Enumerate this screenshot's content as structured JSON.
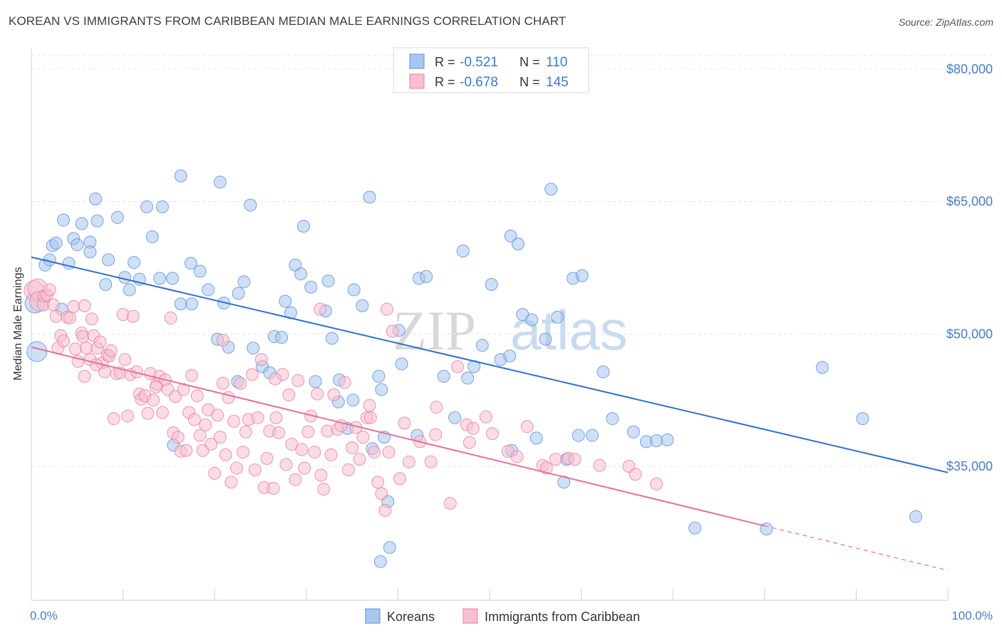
{
  "header": {
    "title": "KOREAN VS IMMIGRANTS FROM CARIBBEAN MEDIAN MALE EARNINGS CORRELATION CHART",
    "source": "Source: ZipAtlas.com"
  },
  "watermark": {
    "zip": "ZIP",
    "atlas": "atlas"
  },
  "stats": [
    {
      "r_label": "R =",
      "r_value": "-0.521",
      "n_label": "N =",
      "n_value": "110",
      "color": "#a8c7ef",
      "stroke": "#5b8fd6"
    },
    {
      "r_label": "R =",
      "r_value": "-0.678",
      "n_label": "N =",
      "n_value": "145",
      "color": "#f8bfd0",
      "stroke": "#e47fa0"
    }
  ],
  "legend": [
    {
      "label": "Koreans",
      "color": "#a8c7ef",
      "stroke": "#5b8fd6"
    },
    {
      "label": "Immigrants from Caribbean",
      "color": "#f8bfd0",
      "stroke": "#e47fa0"
    }
  ],
  "chart_data": {
    "type": "scatter",
    "ylabel": "Median Male Earnings",
    "xlabel": "",
    "xlim": [
      0,
      100
    ],
    "ylim": [
      20000,
      83000
    ],
    "x_tick_labels": [
      "0.0%",
      "100.0%"
    ],
    "y_ticks": [
      {
        "value": 80000,
        "label": "$80,000"
      },
      {
        "value": 65000,
        "label": "$65,000"
      },
      {
        "value": 50000,
        "label": "$50,000"
      },
      {
        "value": 35000,
        "label": "$35,000"
      }
    ],
    "grid": "horizontal-dashed",
    "series": [
      {
        "name": "Koreans",
        "color": "#a8c7ef",
        "stroke": "#5b8fd6",
        "trend_color": "#2f6fcf",
        "trend": {
          "x0": 0,
          "y0": 58700,
          "x1": 100,
          "y1": 34300,
          "solid_until": 100
        },
        "points": [
          [
            0.6,
            48000
          ],
          [
            1.5,
            57800
          ],
          [
            0.4,
            53500
          ],
          [
            2,
            58400
          ],
          [
            2.3,
            60000
          ],
          [
            3.5,
            62900
          ],
          [
            4.1,
            58000
          ],
          [
            4.6,
            60800
          ],
          [
            5,
            60100
          ],
          [
            5.5,
            62500
          ],
          [
            6.4,
            60400
          ],
          [
            6.4,
            59300
          ],
          [
            7,
            65300
          ],
          [
            7.2,
            62800
          ],
          [
            8.1,
            55600
          ],
          [
            8.4,
            58400
          ],
          [
            9.4,
            63200
          ],
          [
            10.2,
            56400
          ],
          [
            10.7,
            55000
          ],
          [
            11.2,
            58100
          ],
          [
            11.8,
            56200
          ],
          [
            12.6,
            64400
          ],
          [
            13.2,
            61000
          ],
          [
            14,
            56300
          ],
          [
            14.3,
            64400
          ],
          [
            15.4,
            56300
          ],
          [
            16.3,
            53400
          ],
          [
            16.3,
            67900
          ],
          [
            17.4,
            58000
          ],
          [
            17.5,
            53400
          ],
          [
            18.4,
            57100
          ],
          [
            19.3,
            55000
          ],
          [
            20.3,
            49400
          ],
          [
            20.6,
            67200
          ],
          [
            21,
            53500
          ],
          [
            21.5,
            48500
          ],
          [
            22.5,
            44600
          ],
          [
            22.6,
            54600
          ],
          [
            23.2,
            55900
          ],
          [
            23.9,
            64600
          ],
          [
            24.2,
            48400
          ],
          [
            25.2,
            46300
          ],
          [
            26,
            45600
          ],
          [
            26.5,
            49700
          ],
          [
            27.3,
            49600
          ],
          [
            27.7,
            53700
          ],
          [
            28.3,
            52400
          ],
          [
            28.8,
            57800
          ],
          [
            29.4,
            56800
          ],
          [
            29.7,
            62200
          ],
          [
            30.5,
            55300
          ],
          [
            31,
            44600
          ],
          [
            32.1,
            52600
          ],
          [
            32.4,
            56000
          ],
          [
            32.8,
            49500
          ],
          [
            33.5,
            42300
          ],
          [
            33.6,
            44800
          ],
          [
            34.5,
            39300
          ],
          [
            35.1,
            42500
          ],
          [
            35.2,
            55000
          ],
          [
            36.1,
            53200
          ],
          [
            36.9,
            65500
          ],
          [
            37.2,
            37000
          ],
          [
            37.9,
            45200
          ],
          [
            38.2,
            43700
          ],
          [
            38.5,
            38300
          ],
          [
            38.9,
            31000
          ],
          [
            39.1,
            25800
          ],
          [
            40.4,
            46600
          ],
          [
            42.1,
            38500
          ],
          [
            42.3,
            56300
          ],
          [
            43.1,
            56500
          ],
          [
            45,
            45200
          ],
          [
            46.2,
            40500
          ],
          [
            47.1,
            59400
          ],
          [
            47.6,
            45000
          ],
          [
            48.3,
            46300
          ],
          [
            49.2,
            48700
          ],
          [
            50.2,
            55600
          ],
          [
            51.2,
            47100
          ],
          [
            52.2,
            47500
          ],
          [
            52.3,
            61100
          ],
          [
            53.1,
            60200
          ],
          [
            53.6,
            52200
          ],
          [
            54.6,
            51600
          ],
          [
            55.1,
            38200
          ],
          [
            56.1,
            49400
          ],
          [
            56.7,
            66400
          ],
          [
            57.4,
            51900
          ],
          [
            58.1,
            33200
          ],
          [
            58.4,
            35800
          ],
          [
            59.1,
            56300
          ],
          [
            59.7,
            38500
          ],
          [
            60.1,
            56600
          ],
          [
            61.2,
            38500
          ],
          [
            62.4,
            45700
          ],
          [
            63.4,
            40400
          ],
          [
            65.7,
            38900
          ],
          [
            67.1,
            37800
          ],
          [
            68.2,
            37900
          ],
          [
            69.4,
            38000
          ],
          [
            72.4,
            28000
          ],
          [
            80.2,
            27900
          ],
          [
            86.3,
            46200
          ],
          [
            90.7,
            40400
          ],
          [
            96.5,
            29300
          ],
          [
            15.5,
            37400
          ],
          [
            38.1,
            24200
          ],
          [
            2.7,
            60300
          ],
          [
            52.4,
            36800
          ],
          [
            40.1,
            50400
          ],
          [
            3.3,
            52800
          ]
        ]
      },
      {
        "name": "Immigrants from Caribbean",
        "color": "#f8bfd0",
        "stroke": "#e47fa0",
        "trend_color": "#e8709a",
        "trend": {
          "x0": 0,
          "y0": 48500,
          "x1": 100,
          "y1": 23200,
          "solid_until": 80
        },
        "points": [
          [
            0.3,
            54900
          ],
          [
            0.7,
            55100
          ],
          [
            0.9,
            53700
          ],
          [
            1.3,
            53300
          ],
          [
            1.4,
            54300
          ],
          [
            1.7,
            54400
          ],
          [
            2,
            55000
          ],
          [
            2.4,
            53300
          ],
          [
            2.7,
            52000
          ],
          [
            2.9,
            48400
          ],
          [
            3.2,
            49800
          ],
          [
            3.5,
            49200
          ],
          [
            3.9,
            51900
          ],
          [
            4.2,
            51800
          ],
          [
            4.6,
            53100
          ],
          [
            4.8,
            48300
          ],
          [
            5.1,
            46900
          ],
          [
            5.5,
            50100
          ],
          [
            5.6,
            49700
          ],
          [
            5.8,
            45200
          ],
          [
            6,
            48400
          ],
          [
            6.4,
            47100
          ],
          [
            6.6,
            51700
          ],
          [
            6.8,
            49800
          ],
          [
            7.2,
            48400
          ],
          [
            7.5,
            49100
          ],
          [
            7.7,
            46700
          ],
          [
            8,
            45700
          ],
          [
            8.3,
            47600
          ],
          [
            8.5,
            47500
          ],
          [
            8.7,
            48100
          ],
          [
            9,
            40400
          ],
          [
            9.3,
            45500
          ],
          [
            9.7,
            45600
          ],
          [
            10,
            52200
          ],
          [
            10.2,
            47100
          ],
          [
            10.5,
            40700
          ],
          [
            10.8,
            45400
          ],
          [
            11.1,
            52000
          ],
          [
            11.5,
            45700
          ],
          [
            11.8,
            43200
          ],
          [
            12,
            42600
          ],
          [
            12.4,
            43000
          ],
          [
            12.7,
            41000
          ],
          [
            13,
            45500
          ],
          [
            13.3,
            42500
          ],
          [
            13.7,
            44300
          ],
          [
            14,
            45200
          ],
          [
            14.3,
            41100
          ],
          [
            14.6,
            44800
          ],
          [
            14.9,
            43700
          ],
          [
            15.2,
            51800
          ],
          [
            15.5,
            38800
          ],
          [
            15.7,
            42900
          ],
          [
            16,
            38300
          ],
          [
            16.3,
            36700
          ],
          [
            16.6,
            43700
          ],
          [
            16.9,
            36800
          ],
          [
            17.2,
            41100
          ],
          [
            17.5,
            45300
          ],
          [
            17.8,
            40300
          ],
          [
            18.1,
            43000
          ],
          [
            18.4,
            38500
          ],
          [
            18.7,
            36800
          ],
          [
            19,
            39700
          ],
          [
            19.3,
            41400
          ],
          [
            19.6,
            37500
          ],
          [
            20,
            34200
          ],
          [
            20.3,
            40800
          ],
          [
            20.6,
            38300
          ],
          [
            20.9,
            44400
          ],
          [
            21.2,
            36300
          ],
          [
            21.5,
            42800
          ],
          [
            21.8,
            33200
          ],
          [
            22.1,
            40100
          ],
          [
            22.4,
            34800
          ],
          [
            22.8,
            44400
          ],
          [
            23.1,
            36600
          ],
          [
            23.4,
            38900
          ],
          [
            23.7,
            40300
          ],
          [
            24.1,
            45400
          ],
          [
            24.4,
            34600
          ],
          [
            24.7,
            40500
          ],
          [
            25.1,
            47100
          ],
          [
            25.4,
            32600
          ],
          [
            25.7,
            35900
          ],
          [
            26,
            39000
          ],
          [
            26.4,
            32500
          ],
          [
            26.7,
            40500
          ],
          [
            27,
            38800
          ],
          [
            27.4,
            45400
          ],
          [
            27.8,
            35200
          ],
          [
            28.1,
            43100
          ],
          [
            28.4,
            37500
          ],
          [
            28.8,
            33500
          ],
          [
            29.1,
            44700
          ],
          [
            29.5,
            36900
          ],
          [
            29.8,
            34800
          ],
          [
            30.2,
            38900
          ],
          [
            30.5,
            40700
          ],
          [
            30.9,
            36600
          ],
          [
            31.2,
            43200
          ],
          [
            31.6,
            34000
          ],
          [
            31.9,
            32400
          ],
          [
            32.3,
            39000
          ],
          [
            32.7,
            36300
          ],
          [
            33,
            43100
          ],
          [
            33.4,
            39200
          ],
          [
            33.8,
            39600
          ],
          [
            34.2,
            44500
          ],
          [
            34.6,
            34600
          ],
          [
            35,
            37100
          ],
          [
            35.4,
            39400
          ],
          [
            35.8,
            35800
          ],
          [
            36.2,
            38300
          ],
          [
            36.6,
            40500
          ],
          [
            37,
            40500
          ],
          [
            37.4,
            36600
          ],
          [
            37.8,
            33200
          ],
          [
            38.2,
            31900
          ],
          [
            38.6,
            30000
          ],
          [
            39,
            36600
          ],
          [
            39.4,
            50300
          ],
          [
            40.2,
            33600
          ],
          [
            40.7,
            39900
          ],
          [
            41.2,
            35500
          ],
          [
            42.4,
            37800
          ],
          [
            43.6,
            35500
          ],
          [
            44.1,
            38600
          ],
          [
            45.7,
            30800
          ],
          [
            46.5,
            46300
          ],
          [
            47.5,
            39700
          ],
          [
            48.2,
            39300
          ],
          [
            49.6,
            40600
          ],
          [
            50.3,
            38700
          ],
          [
            52,
            36700
          ],
          [
            54.1,
            39500
          ],
          [
            55.8,
            35100
          ],
          [
            56.2,
            34800
          ],
          [
            57.2,
            35800
          ],
          [
            58.6,
            35900
          ],
          [
            59.3,
            35800
          ],
          [
            62,
            35100
          ],
          [
            65.2,
            35000
          ],
          [
            65.9,
            34100
          ],
          [
            68.2,
            33000
          ],
          [
            20.9,
            49300
          ],
          [
            38.8,
            52800
          ],
          [
            31.5,
            52800
          ],
          [
            13.6,
            44000
          ],
          [
            5.8,
            53200
          ],
          [
            7.1,
            46500
          ],
          [
            26.6,
            44900
          ],
          [
            36.9,
            41900
          ],
          [
            44.2,
            41700
          ],
          [
            47.8,
            37700
          ],
          [
            53,
            36100
          ]
        ]
      }
    ]
  }
}
